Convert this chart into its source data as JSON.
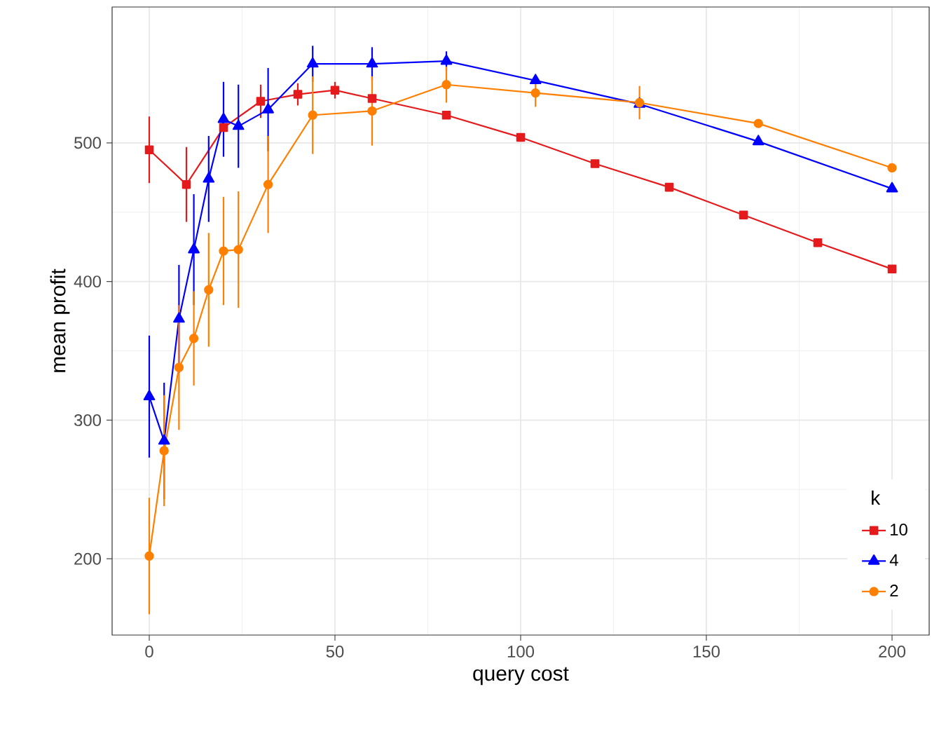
{
  "chart_data": {
    "type": "line",
    "xlabel": "query cost",
    "ylabel": "mean profit",
    "legend_title": "k",
    "legend": "bottom right",
    "grid": true,
    "line_style": "solid",
    "xlim": [
      -10,
      210
    ],
    "ylim": [
      145,
      598
    ],
    "xticks": [
      0,
      50,
      100,
      150,
      200
    ],
    "yticks": [
      200,
      300,
      400,
      500
    ],
    "series": [
      {
        "name": "10",
        "color": "#e41a1c",
        "marker": "square",
        "x": [
          0,
          10,
          20,
          30,
          40,
          50,
          60,
          80,
          100,
          120,
          140,
          160,
          180,
          200
        ],
        "values": [
          495,
          470,
          511,
          530,
          535,
          538,
          532,
          520,
          504,
          485,
          468,
          448,
          428,
          409
        ],
        "errors": [
          24,
          27,
          null,
          12,
          8,
          6,
          null,
          null,
          null,
          null,
          null,
          null,
          null,
          null
        ]
      },
      {
        "name": "4",
        "color": "#0000ff",
        "marker": "triangle",
        "x": [
          0,
          4,
          8,
          12,
          16,
          20,
          24,
          32,
          44,
          60,
          80,
          104,
          132,
          164,
          200
        ],
        "values": [
          317,
          285,
          373,
          423,
          474,
          517,
          512,
          524,
          557,
          557,
          559,
          545,
          528,
          501,
          467
        ],
        "errors": [
          44,
          42,
          39,
          40,
          31,
          27,
          30,
          30,
          13,
          12,
          7,
          null,
          null,
          null,
          null
        ]
      },
      {
        "name": "2",
        "color": "#ff7f00",
        "marker": "circle",
        "x": [
          0,
          4,
          8,
          12,
          16,
          20,
          24,
          32,
          44,
          60,
          80,
          104,
          132,
          164,
          200
        ],
        "values": [
          202,
          278,
          338,
          359,
          394,
          422,
          423,
          470,
          520,
          523,
          542,
          536,
          529,
          514,
          482
        ],
        "errors": [
          42,
          40,
          45,
          34,
          41,
          39,
          42,
          35,
          28,
          25,
          13,
          10,
          12,
          null,
          null
        ]
      }
    ]
  }
}
